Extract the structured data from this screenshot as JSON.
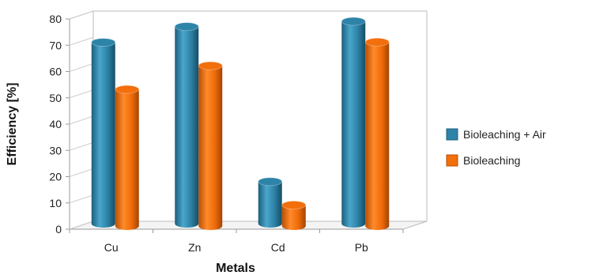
{
  "chart_data": {
    "type": "bar",
    "title": "",
    "xlabel": "Metals",
    "ylabel": "Efficiency [%]",
    "categories": [
      "Cu",
      "Zn",
      "Cd",
      "Pb"
    ],
    "series": [
      {
        "name": "Bioleaching + Air",
        "values": [
          69,
          75,
          16,
          77
        ],
        "color": "#2e84a8"
      },
      {
        "name": "Bioleaching",
        "values": [
          52,
          61,
          8,
          70
        ],
        "color": "#f26f0c"
      }
    ],
    "ylim": [
      0,
      80
    ],
    "yticks": [
      0,
      10,
      20,
      30,
      40,
      50,
      60,
      70,
      80
    ],
    "grid": false,
    "legend_position": "right",
    "style": "3d-cylinder"
  }
}
